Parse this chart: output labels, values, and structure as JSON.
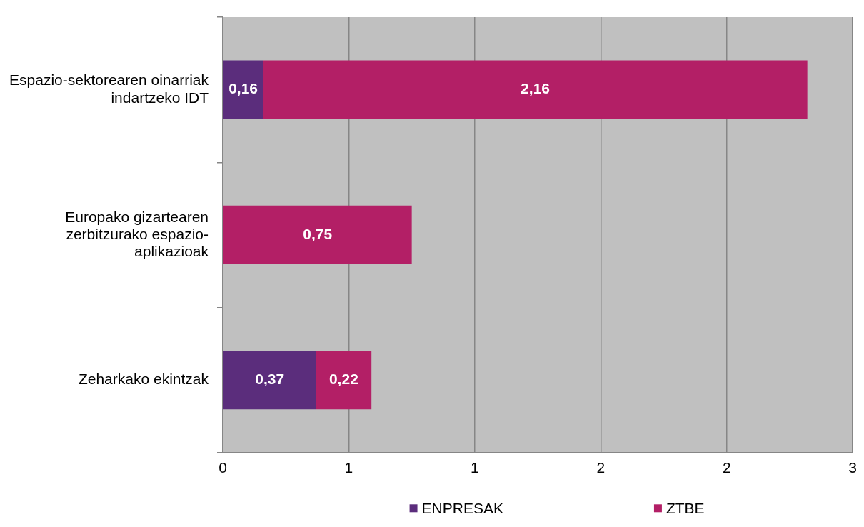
{
  "chart_data": {
    "type": "bar",
    "orientation": "horizontal",
    "stacked": true,
    "categories": [
      "Espazio-sektorearen oinarriak indartzeko IDT",
      "Europako gizartearen zerbitzurako espazio-aplikazioak",
      "Zeharkako ekintzak"
    ],
    "series": [
      {
        "name": "ENPRESAK",
        "color": "#5b2d7c",
        "values": [
          0.16,
          null,
          0.37
        ],
        "value_labels": [
          "0,16",
          null,
          "0,37"
        ]
      },
      {
        "name": "ZTBE",
        "color": "#b31f66",
        "values": [
          2.16,
          0.75,
          0.22
        ],
        "value_labels": [
          "2,16",
          "0,75",
          "0,22"
        ]
      }
    ],
    "xlim": [
      0,
      2.5
    ],
    "xticks": [
      0,
      {
        "value": 0.5,
        "label": "1"
      },
      1,
      {
        "value": 1.5,
        "label": "2"
      },
      2,
      {
        "value": 2.5,
        "label": "3"
      }
    ],
    "grid": "x",
    "legend": "bottom"
  }
}
